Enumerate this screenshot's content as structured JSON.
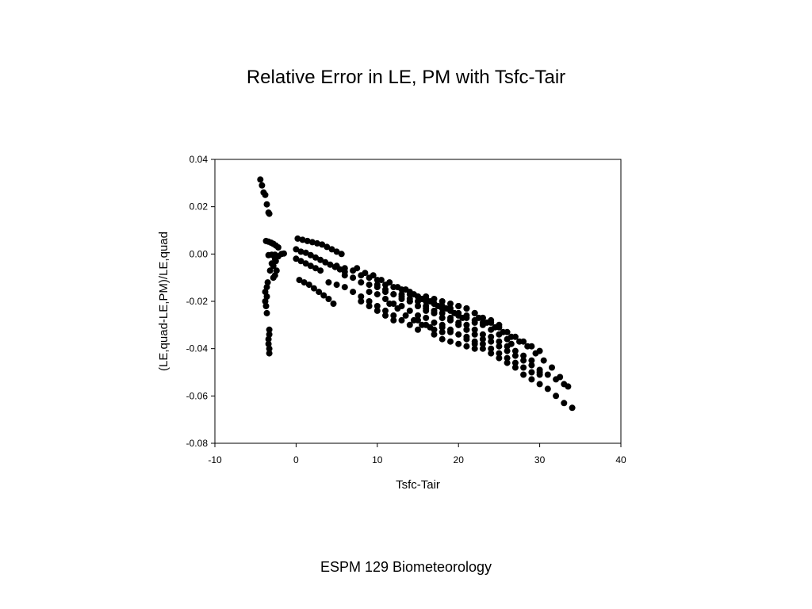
{
  "slide": {
    "title": "Relative Error in LE, PM with Tsfc-Tair",
    "footer": "ESPM 129 Biometeorology"
  },
  "chart_data": {
    "type": "scatter",
    "title": "Relative Error in LE, PM with Tsfc-Tair",
    "xlabel": "Tsfc-Tair",
    "ylabel": "(LE,quad-LE,PM)/LE,quad",
    "xlim": [
      -10,
      40
    ],
    "ylim": [
      -0.08,
      0.04
    ],
    "xticks": [
      "-10",
      "0",
      "10",
      "20",
      "30",
      "40"
    ],
    "yticks": [
      "-0.08",
      "-0.06",
      "-0.04",
      "-0.02",
      "0.00",
      "0.02",
      "0.04"
    ],
    "grid": false,
    "legend": "none",
    "marker_color": "#000000",
    "series": [
      {
        "points": [
          [
            -4.4,
            0.0315
          ],
          [
            -4.2,
            0.029
          ],
          [
            -4.0,
            0.026
          ],
          [
            -3.8,
            0.025
          ],
          [
            -3.6,
            0.021
          ],
          [
            -3.4,
            0.0175
          ],
          [
            -3.3,
            0.017
          ],
          [
            -3.7,
            0.0055
          ],
          [
            -3.4,
            0.0052
          ],
          [
            -3.1,
            0.0048
          ],
          [
            -2.8,
            0.0043
          ],
          [
            -2.5,
            0.0036
          ],
          [
            -2.2,
            0.0028
          ],
          [
            -3.5,
            -0.012
          ],
          [
            -3.6,
            -0.014
          ],
          [
            -3.8,
            -0.016
          ],
          [
            -3.6,
            -0.018
          ],
          [
            -3.8,
            -0.02
          ],
          [
            -3.7,
            -0.022
          ],
          [
            -3.6,
            -0.025
          ],
          [
            -3.3,
            -0.032
          ],
          [
            -3.3,
            -0.034
          ],
          [
            -3.4,
            -0.036
          ],
          [
            -3.4,
            -0.038
          ],
          [
            -3.3,
            -0.04
          ],
          [
            -3.3,
            -0.042
          ],
          [
            -3.2,
            -0.007
          ],
          [
            -2.8,
            -0.005
          ],
          [
            -2.5,
            -0.003
          ],
          [
            -2.2,
            -0.001
          ],
          [
            -1.8,
            0.0
          ],
          [
            -1.5,
            0.0002
          ],
          [
            -3.0,
            -0.004
          ],
          [
            -2.6,
            -0.002
          ],
          [
            -2.3,
            -0.001
          ],
          [
            -3.4,
            -0.0005
          ],
          [
            -3.0,
            -0.0003
          ],
          [
            -2.6,
            -0.0003
          ],
          [
            -2.8,
            -0.01
          ],
          [
            -2.6,
            -0.009
          ],
          [
            -2.4,
            -0.007
          ],
          [
            0.2,
            0.0065
          ],
          [
            0.8,
            0.006
          ],
          [
            1.4,
            0.0055
          ],
          [
            2.0,
            0.005
          ],
          [
            2.6,
            0.0045
          ],
          [
            3.2,
            0.004
          ],
          [
            3.8,
            0.003
          ],
          [
            4.4,
            0.002
          ],
          [
            5.0,
            0.001
          ],
          [
            5.6,
            0.0
          ],
          [
            0.0,
            0.002
          ],
          [
            0.6,
            0.001
          ],
          [
            1.2,
            0.0005
          ],
          [
            1.8,
            -0.0005
          ],
          [
            2.4,
            -0.0015
          ],
          [
            3.0,
            -0.0025
          ],
          [
            3.6,
            -0.0035
          ],
          [
            4.2,
            -0.0045
          ],
          [
            4.8,
            -0.0055
          ],
          [
            5.4,
            -0.0065
          ],
          [
            6.0,
            -0.0075
          ],
          [
            0.0,
            -0.002
          ],
          [
            0.6,
            -0.003
          ],
          [
            1.2,
            -0.004
          ],
          [
            1.8,
            -0.005
          ],
          [
            2.4,
            -0.006
          ],
          [
            3.0,
            -0.007
          ],
          [
            0.4,
            -0.011
          ],
          [
            1.0,
            -0.012
          ],
          [
            1.6,
            -0.013
          ],
          [
            2.2,
            -0.0145
          ],
          [
            2.8,
            -0.016
          ],
          [
            3.4,
            -0.0175
          ],
          [
            4.0,
            -0.019
          ],
          [
            4.6,
            -0.021
          ],
          [
            4.0,
            -0.012
          ],
          [
            5.0,
            -0.013
          ],
          [
            6.0,
            -0.014
          ],
          [
            7.0,
            -0.016
          ],
          [
            8.0,
            -0.018
          ],
          [
            9.0,
            -0.02
          ],
          [
            10.0,
            -0.022
          ],
          [
            11.0,
            -0.024
          ],
          [
            12.0,
            -0.026
          ],
          [
            13.0,
            -0.028
          ],
          [
            14.0,
            -0.03
          ],
          [
            15.0,
            -0.032
          ],
          [
            6.0,
            -0.009
          ],
          [
            7.0,
            -0.01
          ],
          [
            8.0,
            -0.012
          ],
          [
            9.0,
            -0.013
          ],
          [
            10.0,
            -0.014
          ],
          [
            11.0,
            -0.016
          ],
          [
            12.0,
            -0.017
          ],
          [
            13.0,
            -0.019
          ],
          [
            14.0,
            -0.02
          ],
          [
            15.0,
            -0.022
          ],
          [
            16.0,
            -0.024
          ],
          [
            17.0,
            -0.025
          ],
          [
            18.0,
            -0.027
          ],
          [
            19.0,
            -0.028
          ],
          [
            20.0,
            -0.03
          ],
          [
            21.0,
            -0.032
          ],
          [
            5.0,
            -0.005
          ],
          [
            6.0,
            -0.006
          ],
          [
            7.0,
            -0.007
          ],
          [
            8.0,
            -0.009
          ],
          [
            9.0,
            -0.01
          ],
          [
            10.0,
            -0.011
          ],
          [
            11.0,
            -0.013
          ],
          [
            12.0,
            -0.014
          ],
          [
            13.0,
            -0.015
          ],
          [
            14.0,
            -0.017
          ],
          [
            15.0,
            -0.018
          ],
          [
            16.0,
            -0.019
          ],
          [
            17.0,
            -0.021
          ],
          [
            18.0,
            -0.022
          ],
          [
            19.0,
            -0.023
          ],
          [
            20.0,
            -0.025
          ],
          [
            21.0,
            -0.026
          ],
          [
            22.0,
            -0.028
          ],
          [
            23.0,
            -0.029
          ],
          [
            7.5,
            -0.006
          ],
          [
            8.5,
            -0.008
          ],
          [
            9.5,
            -0.009
          ],
          [
            10.5,
            -0.011
          ],
          [
            11.5,
            -0.012
          ],
          [
            12.5,
            -0.014
          ],
          [
            13.5,
            -0.015
          ],
          [
            14.5,
            -0.017
          ],
          [
            15.5,
            -0.019
          ],
          [
            16.5,
            -0.02
          ],
          [
            17.5,
            -0.022
          ],
          [
            18.5,
            -0.023
          ],
          [
            19.5,
            -0.025
          ],
          [
            20.5,
            -0.027
          ],
          [
            9.0,
            -0.016
          ],
          [
            10.0,
            -0.017
          ],
          [
            11.0,
            -0.019
          ],
          [
            12.0,
            -0.021
          ],
          [
            13.0,
            -0.022
          ],
          [
            14.0,
            -0.024
          ],
          [
            15.0,
            -0.026
          ],
          [
            16.0,
            -0.027
          ],
          [
            17.0,
            -0.029
          ],
          [
            18.0,
            -0.031
          ],
          [
            19.0,
            -0.033
          ],
          [
            10.0,
            -0.013
          ],
          [
            11.0,
            -0.015
          ],
          [
            12.0,
            -0.017
          ],
          [
            13.0,
            -0.018
          ],
          [
            14.0,
            -0.02
          ],
          [
            15.0,
            -0.022
          ],
          [
            16.0,
            -0.023
          ],
          [
            17.0,
            -0.025
          ],
          [
            18.0,
            -0.027
          ],
          [
            19.0,
            -0.028
          ],
          [
            20.0,
            -0.03
          ],
          [
            21.0,
            -0.032
          ],
          [
            22.0,
            -0.034
          ],
          [
            23.0,
            -0.036
          ],
          [
            24.0,
            -0.037
          ],
          [
            25.0,
            -0.039
          ],
          [
            26.0,
            -0.041
          ],
          [
            27.0,
            -0.043
          ],
          [
            28.0,
            -0.045
          ],
          [
            29.0,
            -0.047
          ],
          [
            30.0,
            -0.049
          ],
          [
            31.0,
            -0.051
          ],
          [
            32.0,
            -0.053
          ],
          [
            33.0,
            -0.055
          ],
          [
            34.0,
            -0.065
          ],
          [
            13.0,
            -0.017
          ],
          [
            14.0,
            -0.019
          ],
          [
            15.0,
            -0.02
          ],
          [
            16.0,
            -0.022
          ],
          [
            17.0,
            -0.024
          ],
          [
            18.0,
            -0.025
          ],
          [
            19.0,
            -0.027
          ],
          [
            20.0,
            -0.029
          ],
          [
            21.0,
            -0.03
          ],
          [
            22.0,
            -0.032
          ],
          [
            23.0,
            -0.034
          ],
          [
            24.0,
            -0.035
          ],
          [
            25.0,
            -0.037
          ],
          [
            26.0,
            -0.039
          ],
          [
            27.0,
            -0.041
          ],
          [
            28.0,
            -0.043
          ],
          [
            29.0,
            -0.045
          ],
          [
            30.0,
            -0.05
          ],
          [
            16.0,
            -0.02
          ],
          [
            17.0,
            -0.021
          ],
          [
            18.0,
            -0.023
          ],
          [
            19.0,
            -0.024
          ],
          [
            20.0,
            -0.026
          ],
          [
            21.0,
            -0.027
          ],
          [
            22.0,
            -0.029
          ],
          [
            23.0,
            -0.03
          ],
          [
            24.0,
            -0.032
          ],
          [
            25.0,
            -0.034
          ],
          [
            26.0,
            -0.036
          ],
          [
            26.5,
            -0.038
          ],
          [
            18.0,
            -0.03
          ],
          [
            19.0,
            -0.032
          ],
          [
            20.0,
            -0.034
          ],
          [
            21.0,
            -0.036
          ],
          [
            22.0,
            -0.038
          ],
          [
            23.0,
            -0.04
          ],
          [
            24.0,
            -0.042
          ],
          [
            25.0,
            -0.044
          ],
          [
            26.0,
            -0.046
          ],
          [
            27.0,
            -0.048
          ],
          [
            28.0,
            -0.051
          ],
          [
            29.0,
            -0.053
          ],
          [
            30.0,
            -0.055
          ],
          [
            31.0,
            -0.057
          ],
          [
            32.0,
            -0.06
          ],
          [
            33.0,
            -0.063
          ],
          [
            20.0,
            -0.022
          ],
          [
            21.0,
            -0.023
          ],
          [
            22.0,
            -0.025
          ],
          [
            23.0,
            -0.027
          ],
          [
            24.0,
            -0.029
          ],
          [
            25.0,
            -0.031
          ],
          [
            26.0,
            -0.033
          ],
          [
            27.0,
            -0.035
          ],
          [
            28.0,
            -0.037
          ],
          [
            29.0,
            -0.039
          ],
          [
            30.0,
            -0.041
          ],
          [
            22.5,
            -0.027
          ],
          [
            23.5,
            -0.029
          ],
          [
            24.5,
            -0.031
          ],
          [
            25.5,
            -0.033
          ],
          [
            26.5,
            -0.035
          ],
          [
            27.5,
            -0.037
          ],
          [
            28.5,
            -0.039
          ],
          [
            29.5,
            -0.042
          ],
          [
            30.5,
            -0.045
          ],
          [
            31.5,
            -0.048
          ],
          [
            32.5,
            -0.052
          ],
          [
            33.5,
            -0.056
          ],
          [
            11.5,
            -0.021
          ],
          [
            12.5,
            -0.023
          ],
          [
            13.5,
            -0.026
          ],
          [
            14.5,
            -0.028
          ],
          [
            15.5,
            -0.03
          ],
          [
            16.5,
            -0.031
          ],
          [
            8.0,
            -0.02
          ],
          [
            9.0,
            -0.022
          ],
          [
            10.0,
            -0.024
          ],
          [
            11.0,
            -0.026
          ],
          [
            12.0,
            -0.028
          ],
          [
            17.0,
            -0.034
          ],
          [
            18.0,
            -0.036
          ],
          [
            19.0,
            -0.037
          ],
          [
            20.0,
            -0.038
          ],
          [
            21.0,
            -0.039
          ],
          [
            22.0,
            -0.04
          ],
          [
            15.0,
            -0.028
          ],
          [
            16.0,
            -0.03
          ],
          [
            17.0,
            -0.032
          ],
          [
            18.0,
            -0.033
          ],
          [
            14.0,
            -0.016
          ],
          [
            15.0,
            -0.018
          ],
          [
            16.0,
            -0.018
          ],
          [
            17.0,
            -0.019
          ],
          [
            18.0,
            -0.02
          ],
          [
            19.0,
            -0.021
          ],
          [
            20.0,
            -0.022
          ],
          [
            21.0,
            -0.023
          ],
          [
            22.0,
            -0.025
          ],
          [
            23.0,
            -0.027
          ],
          [
            24.0,
            -0.028
          ],
          [
            25.0,
            -0.03
          ],
          [
            21.0,
            -0.035
          ],
          [
            22.0,
            -0.037
          ],
          [
            23.0,
            -0.038
          ],
          [
            24.0,
            -0.04
          ],
          [
            25.0,
            -0.042
          ],
          [
            26.0,
            -0.044
          ],
          [
            27.0,
            -0.046
          ],
          [
            28.0,
            -0.048
          ],
          [
            29.0,
            -0.05
          ],
          [
            30.0,
            -0.051
          ]
        ]
      }
    ]
  }
}
